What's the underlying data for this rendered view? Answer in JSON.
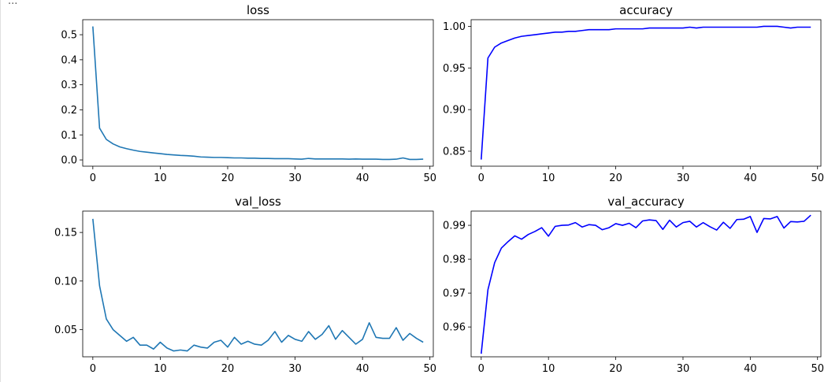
{
  "cell": {
    "ellipsis": "..."
  },
  "chart_data": [
    {
      "type": "line",
      "title": "loss",
      "xlabel": "",
      "ylabel": "",
      "color": "#1f77b4",
      "xlim": [
        -1.5,
        50.5
      ],
      "ylim": [
        -0.025,
        0.56
      ],
      "xticks": [
        0,
        10,
        20,
        30,
        40,
        50
      ],
      "yticks": [
        0.0,
        0.1,
        0.2,
        0.3,
        0.4,
        0.5
      ],
      "ytick_labels": [
        "0.0",
        "0.1",
        "0.2",
        "0.3",
        "0.4",
        "0.5"
      ],
      "x": [
        0,
        1,
        2,
        3,
        4,
        5,
        6,
        7,
        8,
        9,
        10,
        11,
        12,
        13,
        14,
        15,
        16,
        17,
        18,
        19,
        20,
        21,
        22,
        23,
        24,
        25,
        26,
        27,
        28,
        29,
        30,
        31,
        32,
        33,
        34,
        35,
        36,
        37,
        38,
        39,
        40,
        41,
        42,
        43,
        44,
        45,
        46,
        47,
        48,
        49
      ],
      "y": [
        0.533,
        0.127,
        0.082,
        0.064,
        0.052,
        0.045,
        0.039,
        0.034,
        0.031,
        0.028,
        0.025,
        0.022,
        0.02,
        0.018,
        0.017,
        0.015,
        0.012,
        0.011,
        0.01,
        0.01,
        0.009,
        0.008,
        0.008,
        0.007,
        0.007,
        0.006,
        0.006,
        0.005,
        0.005,
        0.005,
        0.004,
        0.003,
        0.006,
        0.004,
        0.004,
        0.004,
        0.004,
        0.004,
        0.003,
        0.004,
        0.003,
        0.003,
        0.003,
        0.002,
        0.002,
        0.003,
        0.008,
        0.002,
        0.002,
        0.003
      ]
    },
    {
      "type": "line",
      "title": "accuracy",
      "xlabel": "",
      "ylabel": "",
      "color": "#0000ff",
      "xlim": [
        -1.5,
        50.5
      ],
      "ylim": [
        0.832,
        1.008
      ],
      "xticks": [
        0,
        10,
        20,
        30,
        40,
        50
      ],
      "yticks": [
        0.85,
        0.9,
        0.95,
        1.0
      ],
      "ytick_labels": [
        "0.85",
        "0.90",
        "0.95",
        "1.00"
      ],
      "x": [
        0,
        1,
        2,
        3,
        4,
        5,
        6,
        7,
        8,
        9,
        10,
        11,
        12,
        13,
        14,
        15,
        16,
        17,
        18,
        19,
        20,
        21,
        22,
        23,
        24,
        25,
        26,
        27,
        28,
        29,
        30,
        31,
        32,
        33,
        34,
        35,
        36,
        37,
        38,
        39,
        40,
        41,
        42,
        43,
        44,
        45,
        46,
        47,
        48,
        49
      ],
      "y": [
        0.84,
        0.962,
        0.975,
        0.98,
        0.983,
        0.986,
        0.988,
        0.989,
        0.99,
        0.991,
        0.992,
        0.993,
        0.993,
        0.994,
        0.994,
        0.995,
        0.996,
        0.996,
        0.996,
        0.996,
        0.997,
        0.997,
        0.997,
        0.997,
        0.997,
        0.998,
        0.998,
        0.998,
        0.998,
        0.998,
        0.998,
        0.999,
        0.998,
        0.999,
        0.999,
        0.999,
        0.999,
        0.999,
        0.999,
        0.999,
        0.999,
        0.999,
        1.0,
        1.0,
        1.0,
        0.999,
        0.998,
        0.999,
        0.999,
        0.999
      ]
    },
    {
      "type": "line",
      "title": "val_loss",
      "xlabel": "",
      "ylabel": "",
      "color": "#1f77b4",
      "xlim": [
        -1.5,
        50.5
      ],
      "ylim": [
        0.022,
        0.172
      ],
      "xticks": [
        0,
        10,
        20,
        30,
        40,
        50
      ],
      "yticks": [
        0.05,
        0.1,
        0.15
      ],
      "ytick_labels": [
        "0.05",
        "0.10",
        "0.15"
      ],
      "x": [
        0,
        1,
        2,
        3,
        4,
        5,
        6,
        7,
        8,
        9,
        10,
        11,
        12,
        13,
        14,
        15,
        16,
        17,
        18,
        19,
        20,
        21,
        22,
        23,
        24,
        25,
        26,
        27,
        28,
        29,
        30,
        31,
        32,
        33,
        34,
        35,
        36,
        37,
        38,
        39,
        40,
        41,
        42,
        43,
        44,
        45,
        46,
        47,
        48,
        49
      ],
      "y": [
        0.164,
        0.095,
        0.061,
        0.05,
        0.044,
        0.038,
        0.042,
        0.034,
        0.034,
        0.03,
        0.037,
        0.031,
        0.028,
        0.029,
        0.028,
        0.034,
        0.032,
        0.031,
        0.037,
        0.039,
        0.032,
        0.042,
        0.035,
        0.038,
        0.035,
        0.034,
        0.039,
        0.048,
        0.037,
        0.044,
        0.04,
        0.038,
        0.048,
        0.04,
        0.045,
        0.054,
        0.04,
        0.049,
        0.042,
        0.035,
        0.04,
        0.057,
        0.042,
        0.041,
        0.041,
        0.052,
        0.039,
        0.046,
        0.041,
        0.037
      ]
    },
    {
      "type": "line",
      "title": "val_accuracy",
      "xlabel": "",
      "ylabel": "",
      "color": "#0000ff",
      "xlim": [
        -1.5,
        50.5
      ],
      "ylim": [
        0.9512,
        0.9942
      ],
      "xticks": [
        0,
        10,
        20,
        30,
        40,
        50
      ],
      "yticks": [
        0.96,
        0.97,
        0.98,
        0.99
      ],
      "ytick_labels": [
        "0.96",
        "0.97",
        "0.98",
        "0.99"
      ],
      "x": [
        0,
        1,
        2,
        3,
        4,
        5,
        6,
        7,
        8,
        9,
        10,
        11,
        12,
        13,
        14,
        15,
        16,
        17,
        18,
        19,
        20,
        21,
        22,
        23,
        24,
        25,
        26,
        27,
        28,
        29,
        30,
        31,
        32,
        33,
        34,
        35,
        36,
        37,
        38,
        39,
        40,
        41,
        42,
        43,
        44,
        45,
        46,
        47,
        48,
        49
      ],
      "y": [
        0.9521,
        0.971,
        0.979,
        0.9833,
        0.9852,
        0.9869,
        0.9859,
        0.9873,
        0.9882,
        0.9893,
        0.9868,
        0.9897,
        0.99,
        0.9901,
        0.9908,
        0.9895,
        0.9902,
        0.99,
        0.9887,
        0.9893,
        0.9905,
        0.99,
        0.9906,
        0.9893,
        0.9913,
        0.9916,
        0.9914,
        0.9888,
        0.9915,
        0.9895,
        0.9908,
        0.9912,
        0.9895,
        0.9908,
        0.9896,
        0.9886,
        0.9909,
        0.9891,
        0.9917,
        0.9918,
        0.9926,
        0.9879,
        0.992,
        0.9919,
        0.9926,
        0.9892,
        0.9911,
        0.991,
        0.9912,
        0.993
      ]
    }
  ]
}
